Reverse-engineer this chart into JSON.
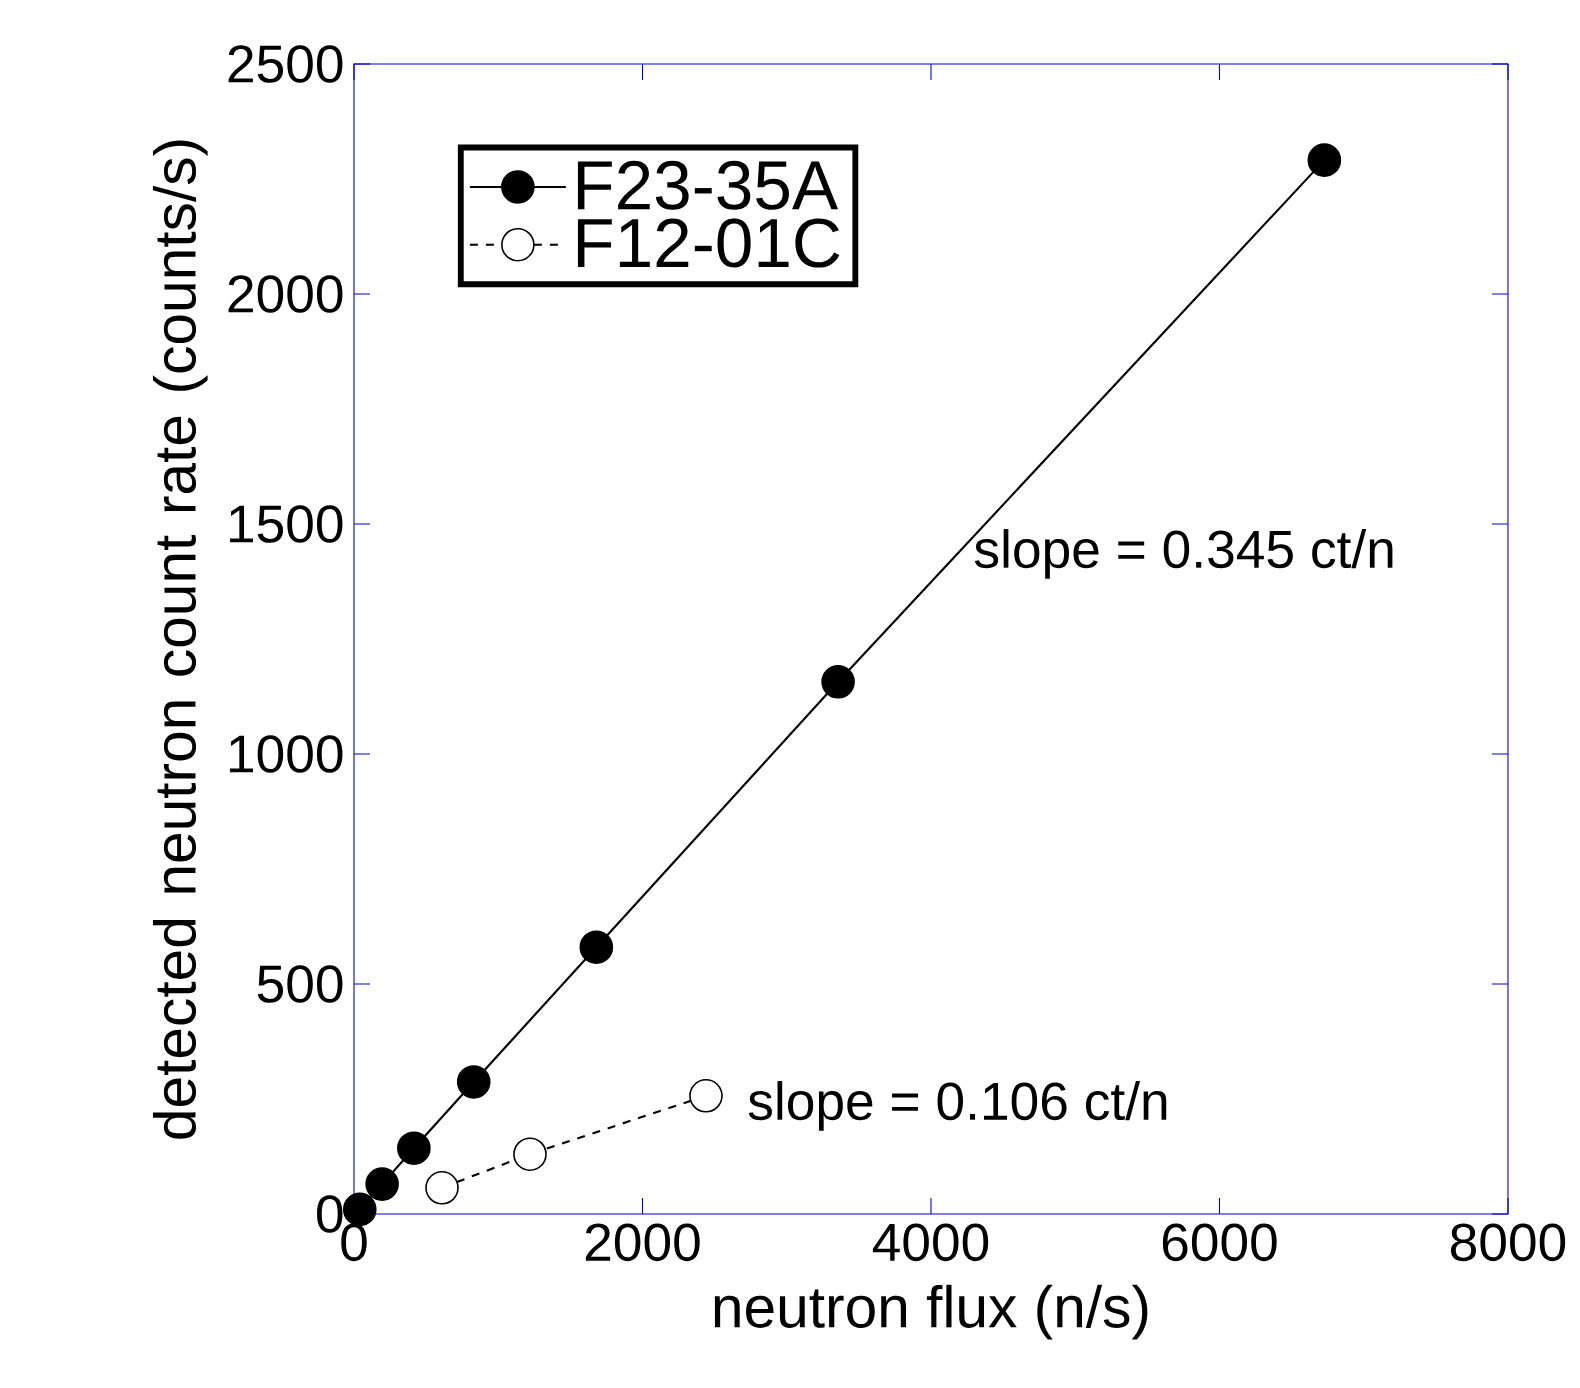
{
  "chart_data": {
    "type": "line",
    "xlabel": "neutron flux (n/s)",
    "ylabel": "detected neutron count rate (counts/s)",
    "xlim": [
      0,
      8000
    ],
    "ylim": [
      0,
      2500
    ],
    "xticks": [
      0,
      2000,
      4000,
      6000,
      8000
    ],
    "yticks": [
      0,
      500,
      1000,
      1500,
      2000,
      2500
    ],
    "grid": false,
    "legend": "top left",
    "marker": "circle",
    "series": [
      {
        "name": "F23-35A",
        "color": "#000000",
        "line_style": "solid",
        "x": [
          40,
          195,
          415,
          830,
          1680,
          3356,
          6727
        ],
        "values": [
          10,
          65,
          143,
          287,
          580,
          1157,
          2291
        ]
      },
      {
        "name": "F12-01C",
        "color": "#000000",
        "line_style": "dashed",
        "x": [
          610,
          1220,
          2440
        ],
        "values": [
          57,
          130,
          257
        ]
      }
    ],
    "annotations": [
      "slope = 0.345 ct/n",
      "slope = 0.106 ct/n"
    ]
  }
}
